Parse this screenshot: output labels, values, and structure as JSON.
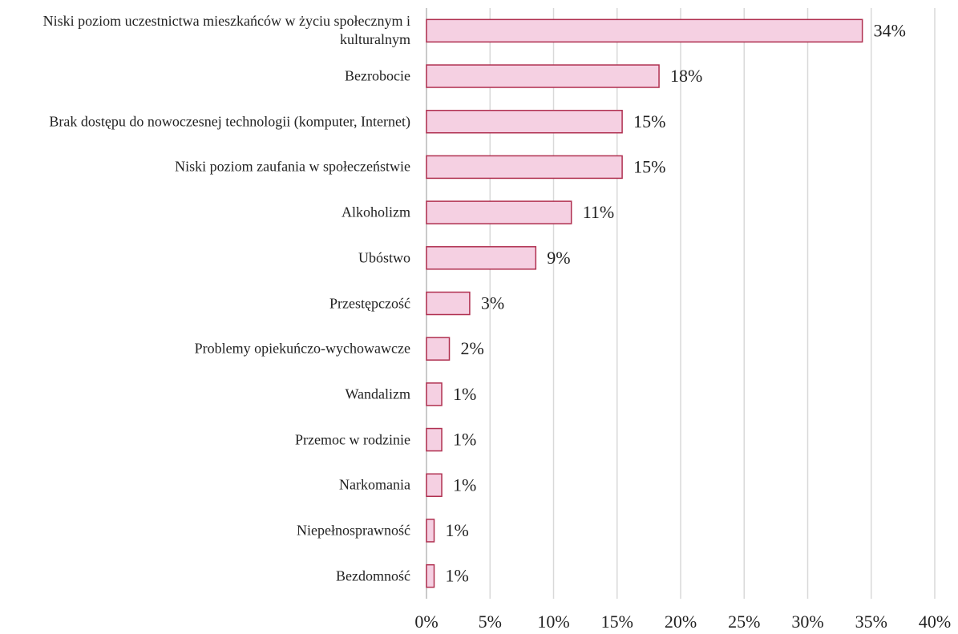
{
  "chart_data": {
    "type": "bar",
    "orientation": "horizontal",
    "categories": [
      "Niski poziom uczestnictwa mieszkańców w życiu społecznym i kulturalnym",
      "Bezrobocie",
      "Brak dostępu do nowoczesnej technologii (komputer, Internet)",
      "Niski poziom zaufania w społeczeństwie",
      "Alkoholizm",
      "Ubóstwo",
      "Przestępczość",
      "Problemy opiekuńczo-wychowawcze",
      "Wandalizm",
      "Przemoc w rodzinie",
      "Narkomania",
      "Niepełnosprawność",
      "Bezdomność"
    ],
    "values": [
      34.3,
      18.3,
      15.4,
      15.4,
      11.4,
      8.6,
      3.4,
      1.8,
      1.2,
      1.2,
      1.2,
      0.6,
      0.6
    ],
    "value_labels": [
      "34%",
      "18%",
      "15%",
      "15%",
      "11%",
      "9%",
      "3%",
      "2%",
      "1%",
      "1%",
      "1%",
      "1%",
      "1%"
    ],
    "color": "#f5d0e2",
    "edge_color": "#b03050",
    "xlim": [
      0,
      40
    ],
    "xticks": [
      {
        "value": 0,
        "label": "0%"
      },
      {
        "value": 5,
        "label": "5%"
      },
      {
        "value": 10,
        "label": "10%"
      },
      {
        "value": 15,
        "label": "15%"
      },
      {
        "value": 20,
        "label": "20%"
      },
      {
        "value": 25,
        "label": "25%"
      },
      {
        "value": 30,
        "label": "30%"
      },
      {
        "value": 35,
        "label": "35%"
      },
      {
        "value": 40,
        "label": "40%"
      }
    ],
    "grid": true
  }
}
